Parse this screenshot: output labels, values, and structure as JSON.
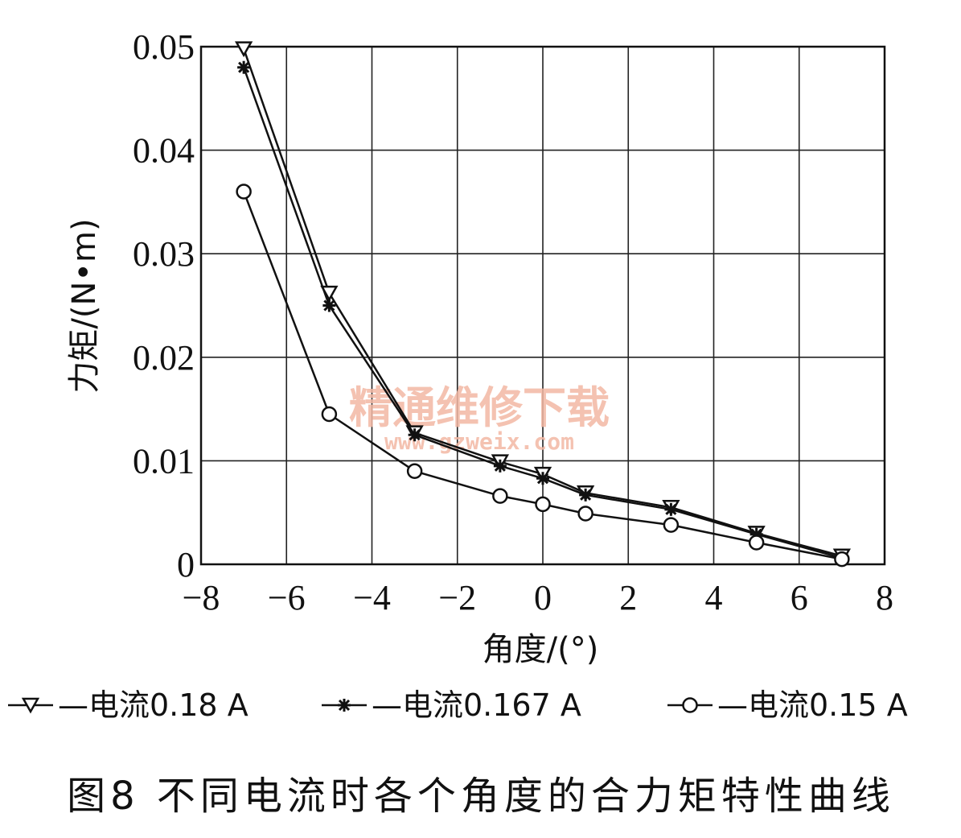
{
  "chart_data": {
    "type": "line",
    "xlabel": "角度/(°)",
    "ylabel": "力矩/(N•m)",
    "xlim": [
      -8,
      8
    ],
    "ylim": [
      0,
      0.05
    ],
    "xticks": [
      "−8",
      "−6",
      "−4",
      "−2",
      "0",
      "2",
      "4",
      "6",
      "8"
    ],
    "yticks": [
      "0",
      "0.01",
      "0.02",
      "0.03",
      "0.04",
      "0.05"
    ],
    "grid": true,
    "legend_position": "bottom",
    "series": [
      {
        "name": "—电流0.18 A",
        "marker": "triangle-down",
        "x": [
          -7,
          -5,
          -3,
          -1,
          0,
          1,
          3,
          5,
          7
        ],
        "y": [
          0.0498,
          0.0262,
          0.0127,
          0.0099,
          0.0087,
          0.0069,
          0.0055,
          0.003,
          0.0008
        ]
      },
      {
        "name": "—电流0.167 A",
        "marker": "asterisk",
        "x": [
          -7,
          -5,
          -3,
          -1,
          0,
          1,
          3,
          5,
          7
        ],
        "y": [
          0.048,
          0.025,
          0.0125,
          0.0095,
          0.0083,
          0.0067,
          0.0053,
          0.0029,
          0.0006
        ]
      },
      {
        "name": "—电流0.15 A",
        "marker": "circle",
        "x": [
          -7,
          -5,
          -3,
          -1,
          0,
          1,
          3,
          5,
          7
        ],
        "y": [
          0.036,
          0.0145,
          0.009,
          0.0066,
          0.0058,
          0.0049,
          0.0038,
          0.0021,
          0.0005
        ]
      }
    ],
    "caption": "图8  不同电流时各个角度的合力矩特性曲线",
    "watermark": [
      "精通维修下载",
      "www.gzweix.com"
    ]
  }
}
